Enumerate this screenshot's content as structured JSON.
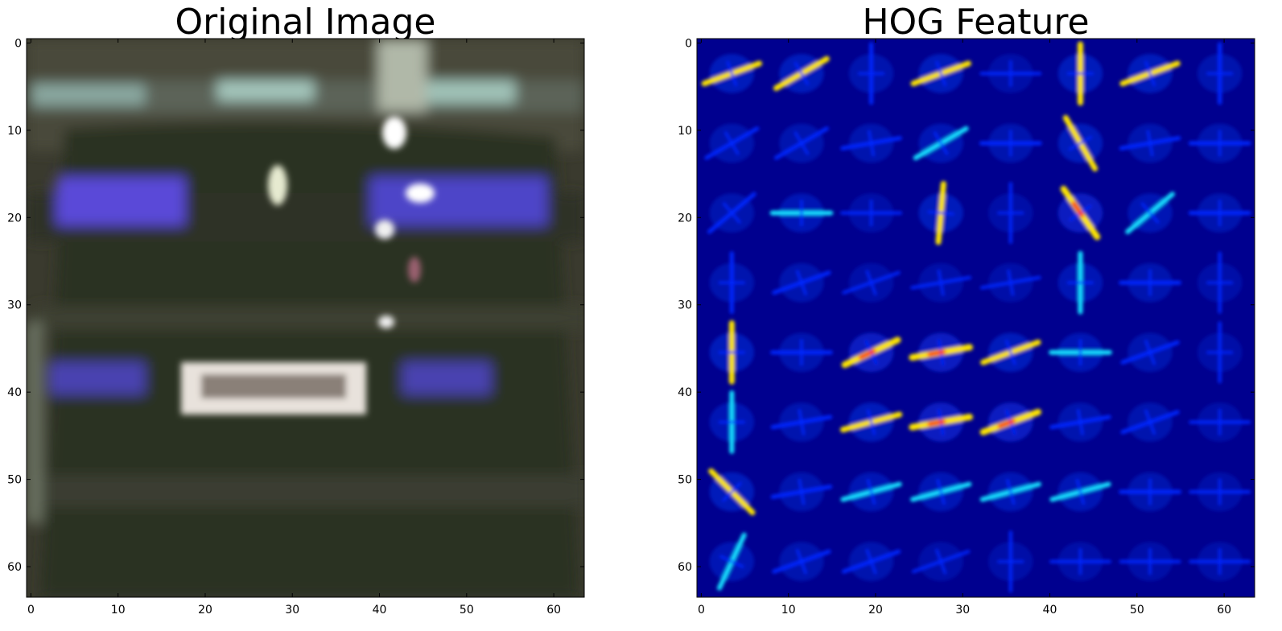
{
  "left_panel": {
    "title": "Original Image",
    "x_ticks": [
      "0",
      "10",
      "20",
      "30",
      "40",
      "50",
      "60"
    ],
    "y_ticks": [
      "0",
      "10",
      "20",
      "30",
      "40",
      "50",
      "60"
    ]
  },
  "right_panel": {
    "title": "HOG Feature",
    "x_ticks": [
      "0",
      "10",
      "20",
      "30",
      "40",
      "50",
      "60"
    ],
    "y_ticks": [
      "0",
      "10",
      "20",
      "30",
      "40",
      "50",
      "60"
    ]
  },
  "colors": {
    "hog_background": "#00008f",
    "hog_low": "#0028ff",
    "hog_mid": "#14e0ff",
    "hog_high": "#ffe600",
    "hog_peak": "#ff2000",
    "car_body": "#2e3226",
    "taillight": "#5a4ad8",
    "plate": "#e8e2dc"
  }
}
